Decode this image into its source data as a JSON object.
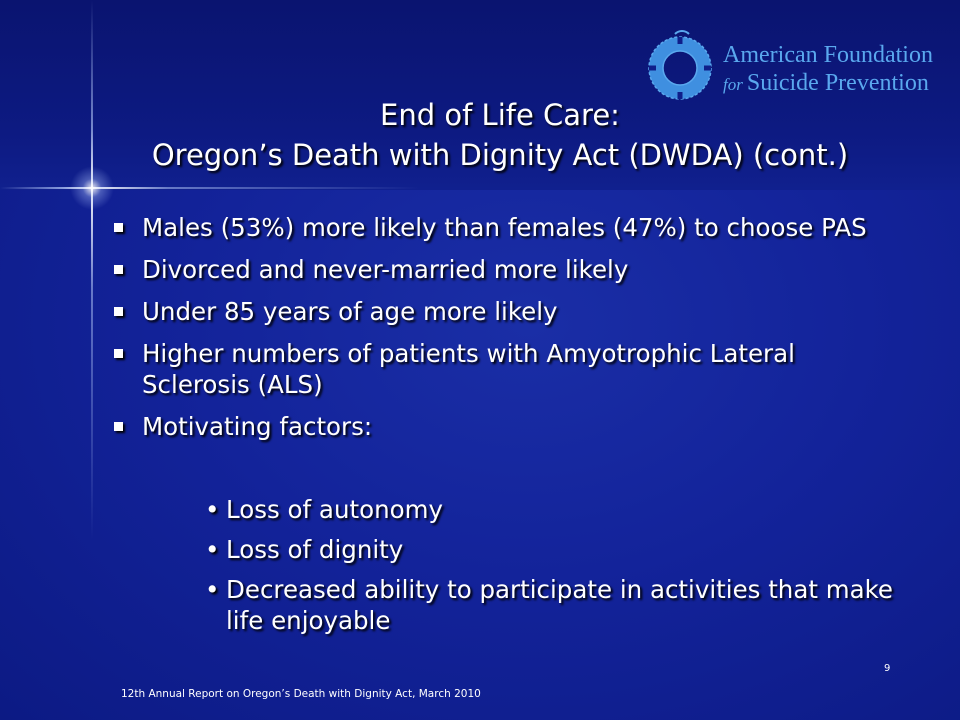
{
  "slide": {
    "title_line1": "End of Life Care:",
    "title_line2": "Oregon’s Death with Dignity Act (DWDA) (cont.)",
    "bullets": [
      "Males (53%) more likely than females (47%) to choose PAS",
      "Divorced and never-married more likely",
      "Under 85 years of age more likely",
      "Higher numbers of patients with Amyotrophic Lateral Sclerosis (ALS)",
      "Motivating factors:"
    ],
    "sub_bullets": [
      "Loss of autonomy",
      "Loss of dignity",
      "Decreased ability to participate in activities that make life enjoyable"
    ],
    "page_number": "9",
    "footer": "12th Annual Report on Oregon’s Death with Dignity Act, March 2010"
  },
  "logo": {
    "line1": "American Foundation",
    "line2_prefix": "for",
    "line2": "Suicide Prevention",
    "icon": "life-ring-icon"
  },
  "colors": {
    "background": "#13239a",
    "title_band": "#0a1470",
    "text": "#ffffff",
    "logo": "#5aa8ee"
  }
}
